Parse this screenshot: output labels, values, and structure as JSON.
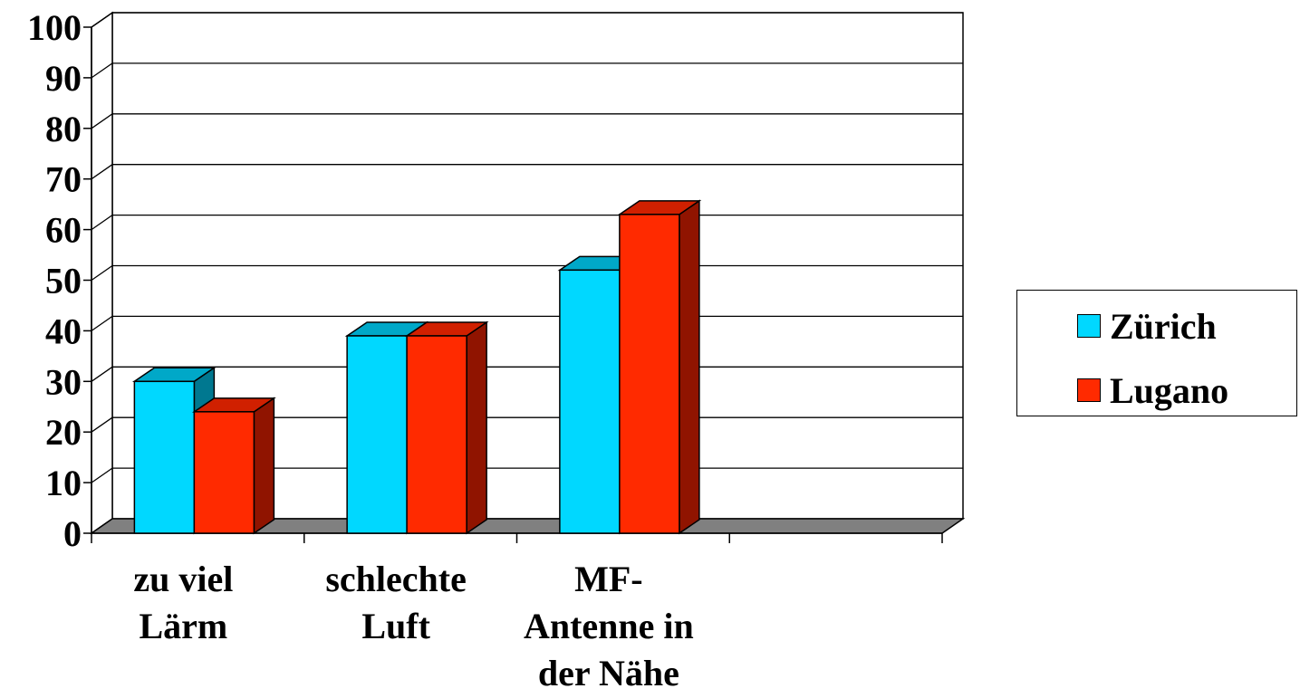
{
  "chart_data": {
    "type": "bar",
    "categories": [
      [
        "zu viel",
        "Lärm"
      ],
      [
        "schlechte",
        "Luft"
      ],
      [
        "MF-",
        "Antenne in",
        "der Nähe"
      ],
      [
        ""
      ]
    ],
    "series": [
      {
        "name": "Zürich",
        "values": [
          30,
          39,
          52,
          null
        ],
        "color": "#00D8FF",
        "top_color": "#00A8C8",
        "side_color": "#007890"
      },
      {
        "name": "Lugano",
        "values": [
          24,
          39,
          63,
          null
        ],
        "color": "#FF2A00",
        "top_color": "#D02000",
        "side_color": "#901400"
      }
    ],
    "yticks": [
      "0",
      "10",
      "20",
      "30",
      "40",
      "50",
      "60",
      "70",
      "80",
      "90",
      "100"
    ],
    "ylim": [
      0,
      100
    ],
    "grid": true,
    "three_d": true,
    "legend": "right"
  },
  "legend": {
    "items": [
      {
        "label": "Zürich",
        "color": "#00D8FF"
      },
      {
        "label": "Lugano",
        "color": "#FF2A00"
      }
    ]
  }
}
